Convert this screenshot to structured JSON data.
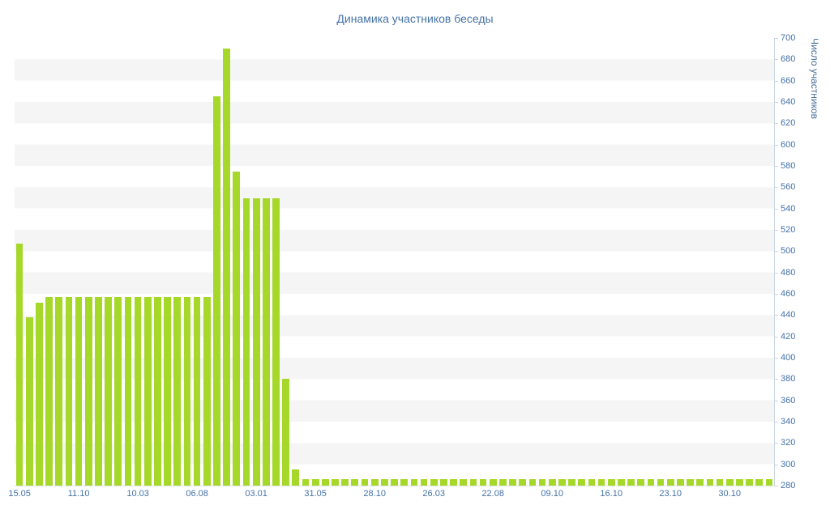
{
  "colors": {
    "background": "#ffffff",
    "bar": "#a6d82a",
    "title": "#4572a7",
    "axis_label": "#4572a7",
    "stripe": "#f5f5f5",
    "axis_line": "#c9d6e4"
  },
  "chart_data": {
    "type": "bar",
    "title": "Динамика участников беседы",
    "xlabel": "",
    "ylabel": "Число участников",
    "ylim": [
      280,
      700
    ],
    "y_tick_step": 20,
    "grid": "striped-bands",
    "legend": "none",
    "y_axis_side": "right",
    "x_tick_labels": [
      "15.05",
      "11.10",
      "10.03",
      "06.08",
      "03.01",
      "31.05",
      "28.10",
      "26.03",
      "22.08",
      "09.10",
      "16.10",
      "23.10",
      "30.10"
    ],
    "x_tick_positions": [
      0,
      6,
      12,
      18,
      24,
      30,
      36,
      42,
      48,
      54,
      60,
      66,
      72
    ],
    "values": [
      507,
      438,
      452,
      457,
      457,
      457,
      457,
      457,
      457,
      457,
      457,
      457,
      457,
      457,
      457,
      457,
      457,
      457,
      457,
      457,
      645,
      690,
      575,
      550,
      550,
      550,
      550,
      380,
      295,
      286,
      286,
      286,
      286,
      286,
      286,
      286,
      286,
      286,
      286,
      286,
      286,
      286,
      286,
      286,
      286,
      286,
      286,
      286,
      286,
      286,
      286,
      286,
      286,
      286,
      286,
      286,
      286,
      286,
      286,
      286,
      286,
      286,
      286,
      286,
      286,
      286,
      286,
      286,
      286,
      286,
      286,
      286,
      286,
      286,
      286,
      286,
      286
    ]
  }
}
